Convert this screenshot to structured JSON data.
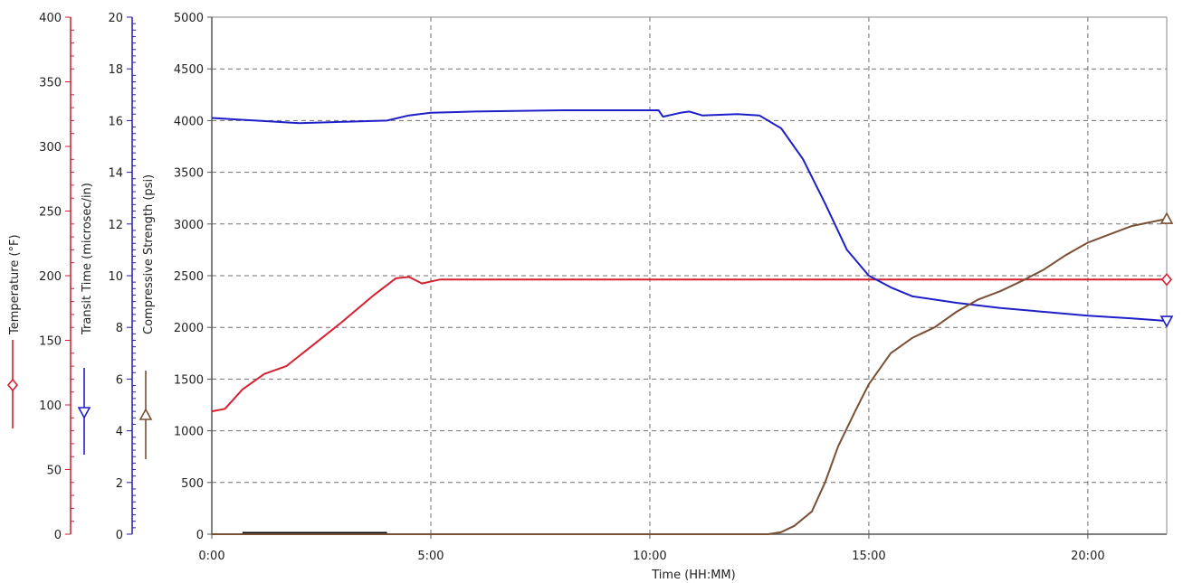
{
  "chart_data": {
    "type": "line",
    "xlabel": "Time (HH:MM)",
    "x_ticks": [
      "0:00",
      "5:00",
      "10:00",
      "15:00",
      "20:00"
    ],
    "xlim_hours": [
      0,
      21.8
    ],
    "grid": true,
    "axes": {
      "temperature": {
        "label": "Temperature (°F)",
        "color": "#cc1f2b",
        "ylim": [
          0,
          400
        ],
        "ticks": [
          "0",
          "50",
          "100",
          "150",
          "200",
          "250",
          "300",
          "350",
          "400"
        ]
      },
      "transit": {
        "label": "Transit Time (microsec/in)",
        "color": "#1f1fb4",
        "ylim": [
          0,
          20
        ],
        "ticks": [
          "0",
          "2",
          "4",
          "6",
          "8",
          "10",
          "12",
          "14",
          "16",
          "18",
          "20"
        ]
      },
      "strength": {
        "label": "Compressive Strength (psi)",
        "color": "#7a5230",
        "ylim": [
          0,
          5000
        ],
        "ticks": [
          "0",
          "500",
          "1000",
          "1500",
          "2000",
          "2500",
          "3000",
          "3500",
          "4000",
          "4500",
          "5000"
        ]
      }
    },
    "series": [
      {
        "axis": "temperature",
        "color": "#d42030",
        "marker": "diamond",
        "x_hours": [
          0,
          0.3,
          0.7,
          1.2,
          1.7,
          2.3,
          3.0,
          3.7,
          4.2,
          4.5,
          4.8,
          5.2,
          6,
          8,
          10,
          12,
          14,
          16,
          18,
          20,
          21.8
        ],
        "y": [
          95,
          97,
          112,
          124,
          130,
          146,
          165,
          185,
          198,
          199,
          194,
          197,
          197,
          197,
          197,
          197,
          197,
          197,
          197,
          197,
          197
        ]
      },
      {
        "axis": "transit",
        "color": "#1f1fc8",
        "marker": "triangle-down",
        "x_hours": [
          0,
          1,
          2,
          3,
          4,
          4.5,
          5,
          6,
          8,
          10.2,
          10.3,
          10.7,
          10.9,
          11.2,
          12,
          12.5,
          13,
          13.5,
          14,
          14.5,
          15,
          15.5,
          16,
          17,
          18,
          19,
          20,
          21,
          21.8
        ],
        "y": [
          16.1,
          16.0,
          15.9,
          15.95,
          16.0,
          16.2,
          16.3,
          16.35,
          16.4,
          16.4,
          16.15,
          16.3,
          16.35,
          16.2,
          16.25,
          16.2,
          15.7,
          14.5,
          12.8,
          11.0,
          10.0,
          9.55,
          9.2,
          8.95,
          8.75,
          8.6,
          8.45,
          8.35,
          8.25
        ]
      },
      {
        "axis": "strength",
        "color": "#7a4f35",
        "marker": "triangle-up",
        "x_hours": [
          0,
          12.7,
          13.0,
          13.3,
          13.7,
          14.0,
          14.3,
          14.7,
          15.0,
          15.5,
          16.0,
          16.5,
          17.0,
          17.5,
          18.0,
          18.5,
          19.0,
          19.5,
          20.0,
          20.5,
          21.0,
          21.8
        ],
        "y": [
          0,
          0,
          20,
          80,
          220,
          500,
          850,
          1200,
          1450,
          1750,
          1900,
          2000,
          2150,
          2270,
          2350,
          2450,
          2560,
          2700,
          2820,
          2900,
          2980,
          3050
        ]
      }
    ],
    "bottom_bar": {
      "color": "#000000",
      "x_hours": [
        0.7,
        4.0
      ]
    }
  }
}
